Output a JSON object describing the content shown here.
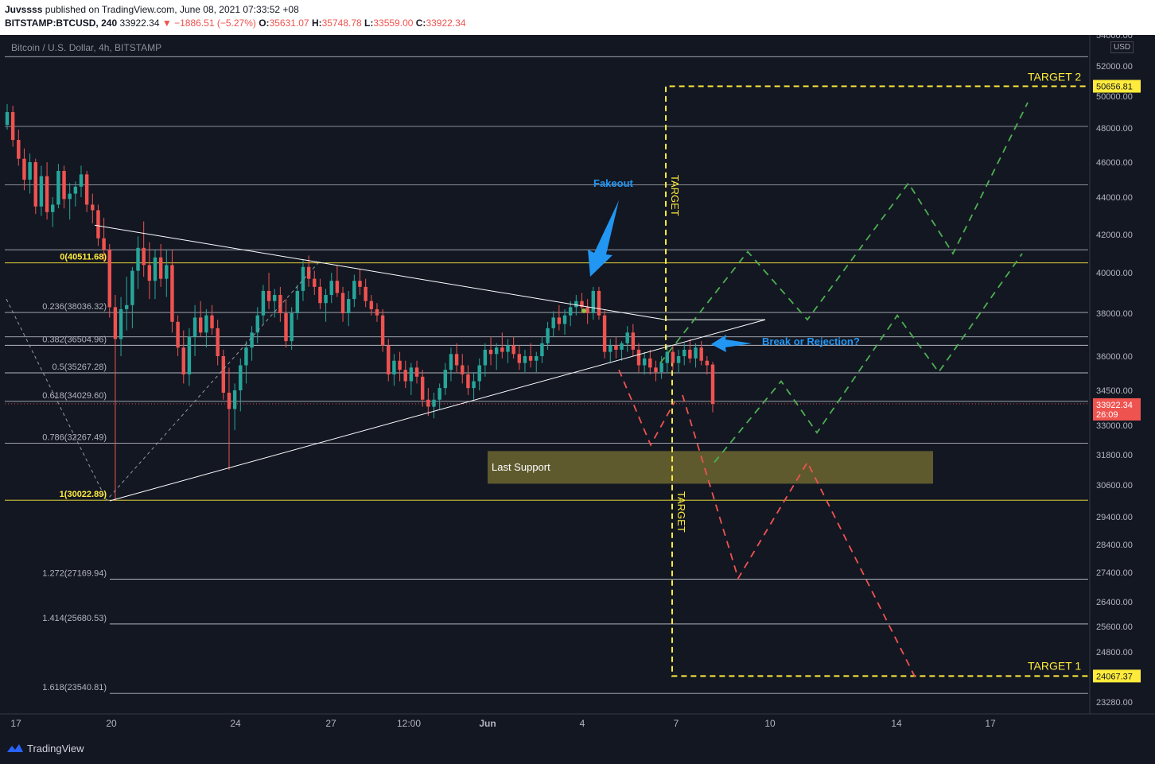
{
  "header": {
    "publisher": "Juvssss",
    "published_text": "published on TradingView.com, June 08, 2021 07:33:52 +08",
    "symbol": "BITSTAMP:BTCUSD, 240",
    "last": "33922.34",
    "change": "−1886.51 (−5.27%)",
    "o_label": "O:",
    "o_value": "35631.07",
    "h_label": "H:",
    "h_value": "35748.78",
    "l_label": "L:",
    "l_value": "33559.00",
    "c_label": "C:",
    "c_value": "33922.34"
  },
  "footer": {
    "brand": "TradingView",
    "logo_icon": "tradingview-logo-icon"
  },
  "chart_data": {
    "type": "candlestick",
    "title": "Bitcoin / U.S. Dollar, 4h, BITSTAMP",
    "currency": "USD",
    "y_range": [
      22900,
      54200
    ],
    "y_ticks": [
      54000,
      52000,
      50000,
      48000,
      46000,
      44000,
      42000,
      40000,
      38000,
      36000,
      34500,
      33000,
      31800,
      30600,
      29400,
      28400,
      27400,
      26400,
      25600,
      24800,
      23280
    ],
    "x_ticks": [
      "17",
      "20",
      "24",
      "27",
      "12:00",
      "Jun",
      "4",
      "7",
      "10",
      "14",
      "17"
    ],
    "last_price": {
      "value": "33922.34",
      "countdown": "26:09",
      "color": "#ef5350"
    },
    "price_labels": [
      {
        "value": "50656.81",
        "color": "#ffeb3b"
      },
      {
        "value": "24067.37",
        "color": "#ffeb3b"
      }
    ],
    "fib_levels": [
      {
        "label": "0(40511.68)",
        "value": 40511.68,
        "color": "#ffeb3b"
      },
      {
        "label": "0.236(38036.32)",
        "value": 38036.32,
        "color": "#b2b5be"
      },
      {
        "label": "0.382(36504.96)",
        "value": 36504.96,
        "color": "#b2b5be"
      },
      {
        "label": "0.5(35267.28)",
        "value": 35267.28,
        "color": "#b2b5be"
      },
      {
        "label": "0.618(34029.60)",
        "value": 34029.6,
        "color": "#b2b5be"
      },
      {
        "label": "0.786(32267.49)",
        "value": 32267.49,
        "color": "#b2b5be"
      },
      {
        "label": "1(30022.89)",
        "value": 30022.89,
        "color": "#ffeb3b"
      },
      {
        "label": "1.272(27169.94)",
        "value": 27169.94,
        "color": "#b2b5be"
      },
      {
        "label": "1.414(25680.53)",
        "value": 25680.53,
        "color": "#b2b5be"
      },
      {
        "label": "1.618(23540.81)",
        "value": 23540.81,
        "color": "#b2b5be"
      }
    ],
    "horizontal_lines": [
      52600,
      48100,
      44700,
      41200,
      36900
    ],
    "annotations": [
      {
        "text": "Fakeout",
        "color": "#2196f3"
      },
      {
        "text": "Break or Rejection?",
        "color": "#2196f3"
      },
      {
        "text": "Last Support",
        "color": "#ffffff"
      },
      {
        "text": "TARGET 2",
        "color": "#ffeb3b"
      },
      {
        "text": "TARGET 1",
        "color": "#ffeb3b"
      },
      {
        "text": "TARGET",
        "color": "#ffeb3b"
      },
      {
        "text": "TARGET",
        "color": "#ffeb3b"
      }
    ],
    "support_zone": [
      30650,
      31950
    ],
    "targets": {
      "target_2": 50656.81,
      "target_1": 24067.37
    },
    "triangle": {
      "upper_start": 42500,
      "upper_end": 37700,
      "lower_start": 30000,
      "apex": 37700
    },
    "projections": {
      "green_path_a": [
        35700,
        41100,
        37700,
        44800,
        41000,
        49600
      ],
      "green_path_b": [
        31500,
        34900,
        32700,
        37900,
        35300,
        41000
      ],
      "red_path_a": [
        35400,
        32200,
        34000
      ],
      "red_path_b": [
        34300,
        27200,
        31500,
        24050
      ]
    },
    "candles": [
      [
        48200,
        49500,
        47900,
        49000
      ],
      [
        49000,
        49400,
        46900,
        47300
      ],
      [
        47300,
        47900,
        45800,
        46200
      ],
      [
        46200,
        46800,
        44400,
        45000
      ],
      [
        45000,
        46500,
        44200,
        46000
      ],
      [
        46000,
        46200,
        43100,
        43500
      ],
      [
        43500,
        45800,
        43000,
        45200
      ],
      [
        45200,
        46000,
        42800,
        43200
      ],
      [
        43200,
        44000,
        42400,
        43600
      ],
      [
        43600,
        45900,
        43400,
        45500
      ],
      [
        45500,
        45800,
        43400,
        43900
      ],
      [
        43900,
        44800,
        42800,
        44200
      ],
      [
        44200,
        44900,
        43500,
        44600
      ],
      [
        44600,
        45800,
        44000,
        45300
      ],
      [
        45300,
        45500,
        43200,
        43600
      ],
      [
        43600,
        44200,
        42600,
        43300
      ],
      [
        43300,
        43600,
        41400,
        41800
      ],
      [
        41800,
        42900,
        40600,
        41200
      ],
      [
        41200,
        41500,
        37800,
        38300
      ],
      [
        38300,
        38900,
        30000,
        36800
      ],
      [
        36800,
        38800,
        36000,
        38200
      ],
      [
        38200,
        39800,
        37200,
        38400
      ],
      [
        38400,
        40300,
        37300,
        40100
      ],
      [
        40100,
        41900,
        39200,
        41300
      ],
      [
        41300,
        42700,
        39800,
        40400
      ],
      [
        40400,
        41600,
        38700,
        39600
      ],
      [
        39600,
        41200,
        38700,
        40800
      ],
      [
        40800,
        41500,
        39300,
        39700
      ],
      [
        39700,
        41200,
        38800,
        40400
      ],
      [
        40400,
        41200,
        37100,
        37600
      ],
      [
        37600,
        37900,
        36000,
        36400
      ],
      [
        36400,
        37200,
        34800,
        35200
      ],
      [
        35200,
        37300,
        34700,
        36900
      ],
      [
        36900,
        38400,
        36000,
        37800
      ],
      [
        37800,
        38600,
        36900,
        37100
      ],
      [
        37100,
        38200,
        36400,
        37900
      ],
      [
        37900,
        38400,
        37000,
        37300
      ],
      [
        37300,
        37700,
        35600,
        36000
      ],
      [
        36000,
        36300,
        34100,
        34400
      ],
      [
        34400,
        35500,
        31200,
        33700
      ],
      [
        33700,
        34800,
        32800,
        34500
      ],
      [
        34500,
        35900,
        33600,
        35600
      ],
      [
        35600,
        36700,
        34800,
        36400
      ],
      [
        36400,
        37400,
        35800,
        37100
      ],
      [
        37100,
        38300,
        36600,
        37900
      ],
      [
        37900,
        39400,
        37500,
        39100
      ],
      [
        39100,
        40000,
        38200,
        38600
      ],
      [
        38600,
        39200,
        37800,
        38900
      ],
      [
        38900,
        39300,
        37600,
        38000
      ],
      [
        38000,
        38700,
        36400,
        36700
      ],
      [
        36700,
        38300,
        36300,
        38000
      ],
      [
        38000,
        39400,
        37700,
        39100
      ],
      [
        39100,
        40700,
        38600,
        40300
      ],
      [
        40300,
        40900,
        39300,
        39700
      ],
      [
        39700,
        40100,
        38900,
        39300
      ],
      [
        39300,
        39700,
        38200,
        38500
      ],
      [
        38500,
        39200,
        37600,
        38900
      ],
      [
        38900,
        40000,
        38500,
        39600
      ],
      [
        39600,
        40400,
        38800,
        39000
      ],
      [
        39000,
        39300,
        37600,
        38000
      ],
      [
        38000,
        39100,
        37400,
        38700
      ],
      [
        38700,
        39900,
        38300,
        39600
      ],
      [
        39600,
        40200,
        38900,
        39300
      ],
      [
        39300,
        39700,
        38300,
        38600
      ],
      [
        38600,
        38900,
        37900,
        38200
      ],
      [
        38200,
        38500,
        37600,
        37900
      ],
      [
        37900,
        38200,
        36200,
        36500
      ],
      [
        36500,
        36800,
        34900,
        35200
      ],
      [
        35200,
        36100,
        34700,
        35800
      ],
      [
        35800,
        36200,
        34900,
        35400
      ],
      [
        35400,
        35800,
        34600,
        34900
      ],
      [
        34900,
        35700,
        34300,
        35500
      ],
      [
        35500,
        35800,
        34800,
        35100
      ],
      [
        35100,
        35400,
        33800,
        34100
      ],
      [
        34100,
        34600,
        33400,
        33800
      ],
      [
        33800,
        34400,
        33300,
        34100
      ],
      [
        34100,
        34800,
        33700,
        34600
      ],
      [
        34600,
        35700,
        34300,
        35400
      ],
      [
        35400,
        36400,
        34900,
        36100
      ],
      [
        36100,
        36600,
        35300,
        35600
      ],
      [
        35600,
        36100,
        34800,
        35200
      ],
      [
        35200,
        35600,
        34300,
        34600
      ],
      [
        34600,
        35300,
        34100,
        34900
      ],
      [
        34900,
        35900,
        34500,
        35600
      ],
      [
        35600,
        36600,
        35100,
        36300
      ],
      [
        36300,
        36900,
        35600,
        36100
      ],
      [
        36100,
        36600,
        35400,
        36400
      ],
      [
        36400,
        37100,
        35900,
        36200
      ],
      [
        36200,
        36800,
        35700,
        36500
      ],
      [
        36500,
        36900,
        35900,
        36100
      ],
      [
        36100,
        36500,
        35400,
        35700
      ],
      [
        35700,
        36300,
        35300,
        36000
      ],
      [
        36000,
        36600,
        35500,
        35800
      ],
      [
        35800,
        36200,
        35300,
        36000
      ],
      [
        36000,
        36900,
        35700,
        36600
      ],
      [
        36600,
        37600,
        36300,
        37300
      ],
      [
        37300,
        38100,
        36900,
        37800
      ],
      [
        37800,
        38400,
        37200,
        37500
      ],
      [
        37500,
        38200,
        37000,
        37900
      ],
      [
        37900,
        38600,
        37400,
        38300
      ],
      [
        38300,
        38900,
        37900,
        38600
      ],
      [
        38600,
        39000,
        38000,
        38300
      ],
      [
        38300,
        38700,
        37500,
        38000
      ],
      [
        38000,
        39300,
        37700,
        39100
      ],
      [
        39100,
        39300,
        37700,
        37900
      ],
      [
        37900,
        38200,
        35900,
        36200
      ],
      [
        36200,
        36800,
        35700,
        36500
      ],
      [
        36500,
        36900,
        35900,
        36300
      ],
      [
        36300,
        36700,
        35800,
        36600
      ],
      [
        36600,
        37400,
        36200,
        37100
      ],
      [
        37100,
        37500,
        36000,
        36300
      ],
      [
        36300,
        36600,
        35300,
        35600
      ],
      [
        35600,
        36200,
        35200,
        35900
      ],
      [
        35900,
        36300,
        35200,
        35500
      ],
      [
        35500,
        35800,
        34900,
        35300
      ],
      [
        35300,
        36000,
        35000,
        35700
      ],
      [
        35700,
        36500,
        35300,
        36200
      ],
      [
        36200,
        36500,
        35400,
        35700
      ],
      [
        35700,
        36300,
        35300,
        36000
      ],
      [
        36000,
        36600,
        35600,
        36300
      ],
      [
        36300,
        36800,
        35700,
        35900
      ],
      [
        35900,
        36600,
        35500,
        36400
      ],
      [
        36400,
        36700,
        35600,
        35800
      ],
      [
        35800,
        36000,
        35200,
        35600
      ],
      [
        35631,
        35749,
        33559,
        33922
      ]
    ],
    "grid": false,
    "legend": "none"
  }
}
